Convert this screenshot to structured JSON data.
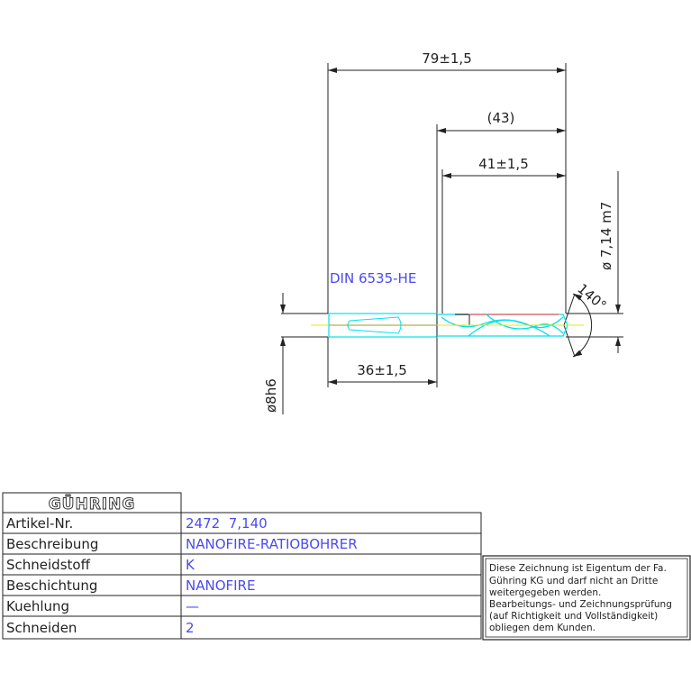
{
  "drawing": {
    "overall_length": "79±1,5",
    "flute_length_ref": "(43)",
    "flute_length": "41±1,5",
    "diameter": "ø 7,14 m7",
    "shank_diameter": "ø8h6",
    "shank_length": "36±1,5",
    "point_angle": "140°",
    "shank_standard": "DIN 6535-HE",
    "colors": {
      "outline": "#222222",
      "body": "#00e0f0",
      "centerline": "#e8e800",
      "annotation": "#4a4af0",
      "edge": "#ff3030"
    }
  },
  "title_block": {
    "logo": "GÜHRING",
    "rows": [
      {
        "label": "Artikel-Nr.",
        "value": "2472  7,140"
      },
      {
        "label": "Beschreibung",
        "value": "NANOFIRE-RATIOBOHRER"
      },
      {
        "label": "Schneidstoff",
        "value": "K"
      },
      {
        "label": "Beschichtung",
        "value": "NANOFIRE"
      },
      {
        "label": "Kuehlung",
        "value": "—"
      },
      {
        "label": "Schneiden",
        "value": "2"
      }
    ],
    "notice": [
      "Diese Zeichnung ist Eigentum der Fa.",
      "Gühring KG und darf nicht an Dritte",
      "weitergegeben werden.",
      "Bearbeitungs- und Zeichnungsprüfung",
      "(auf Richtigkeit und Vollständigkeit)",
      "obliegen dem Kunden."
    ]
  }
}
